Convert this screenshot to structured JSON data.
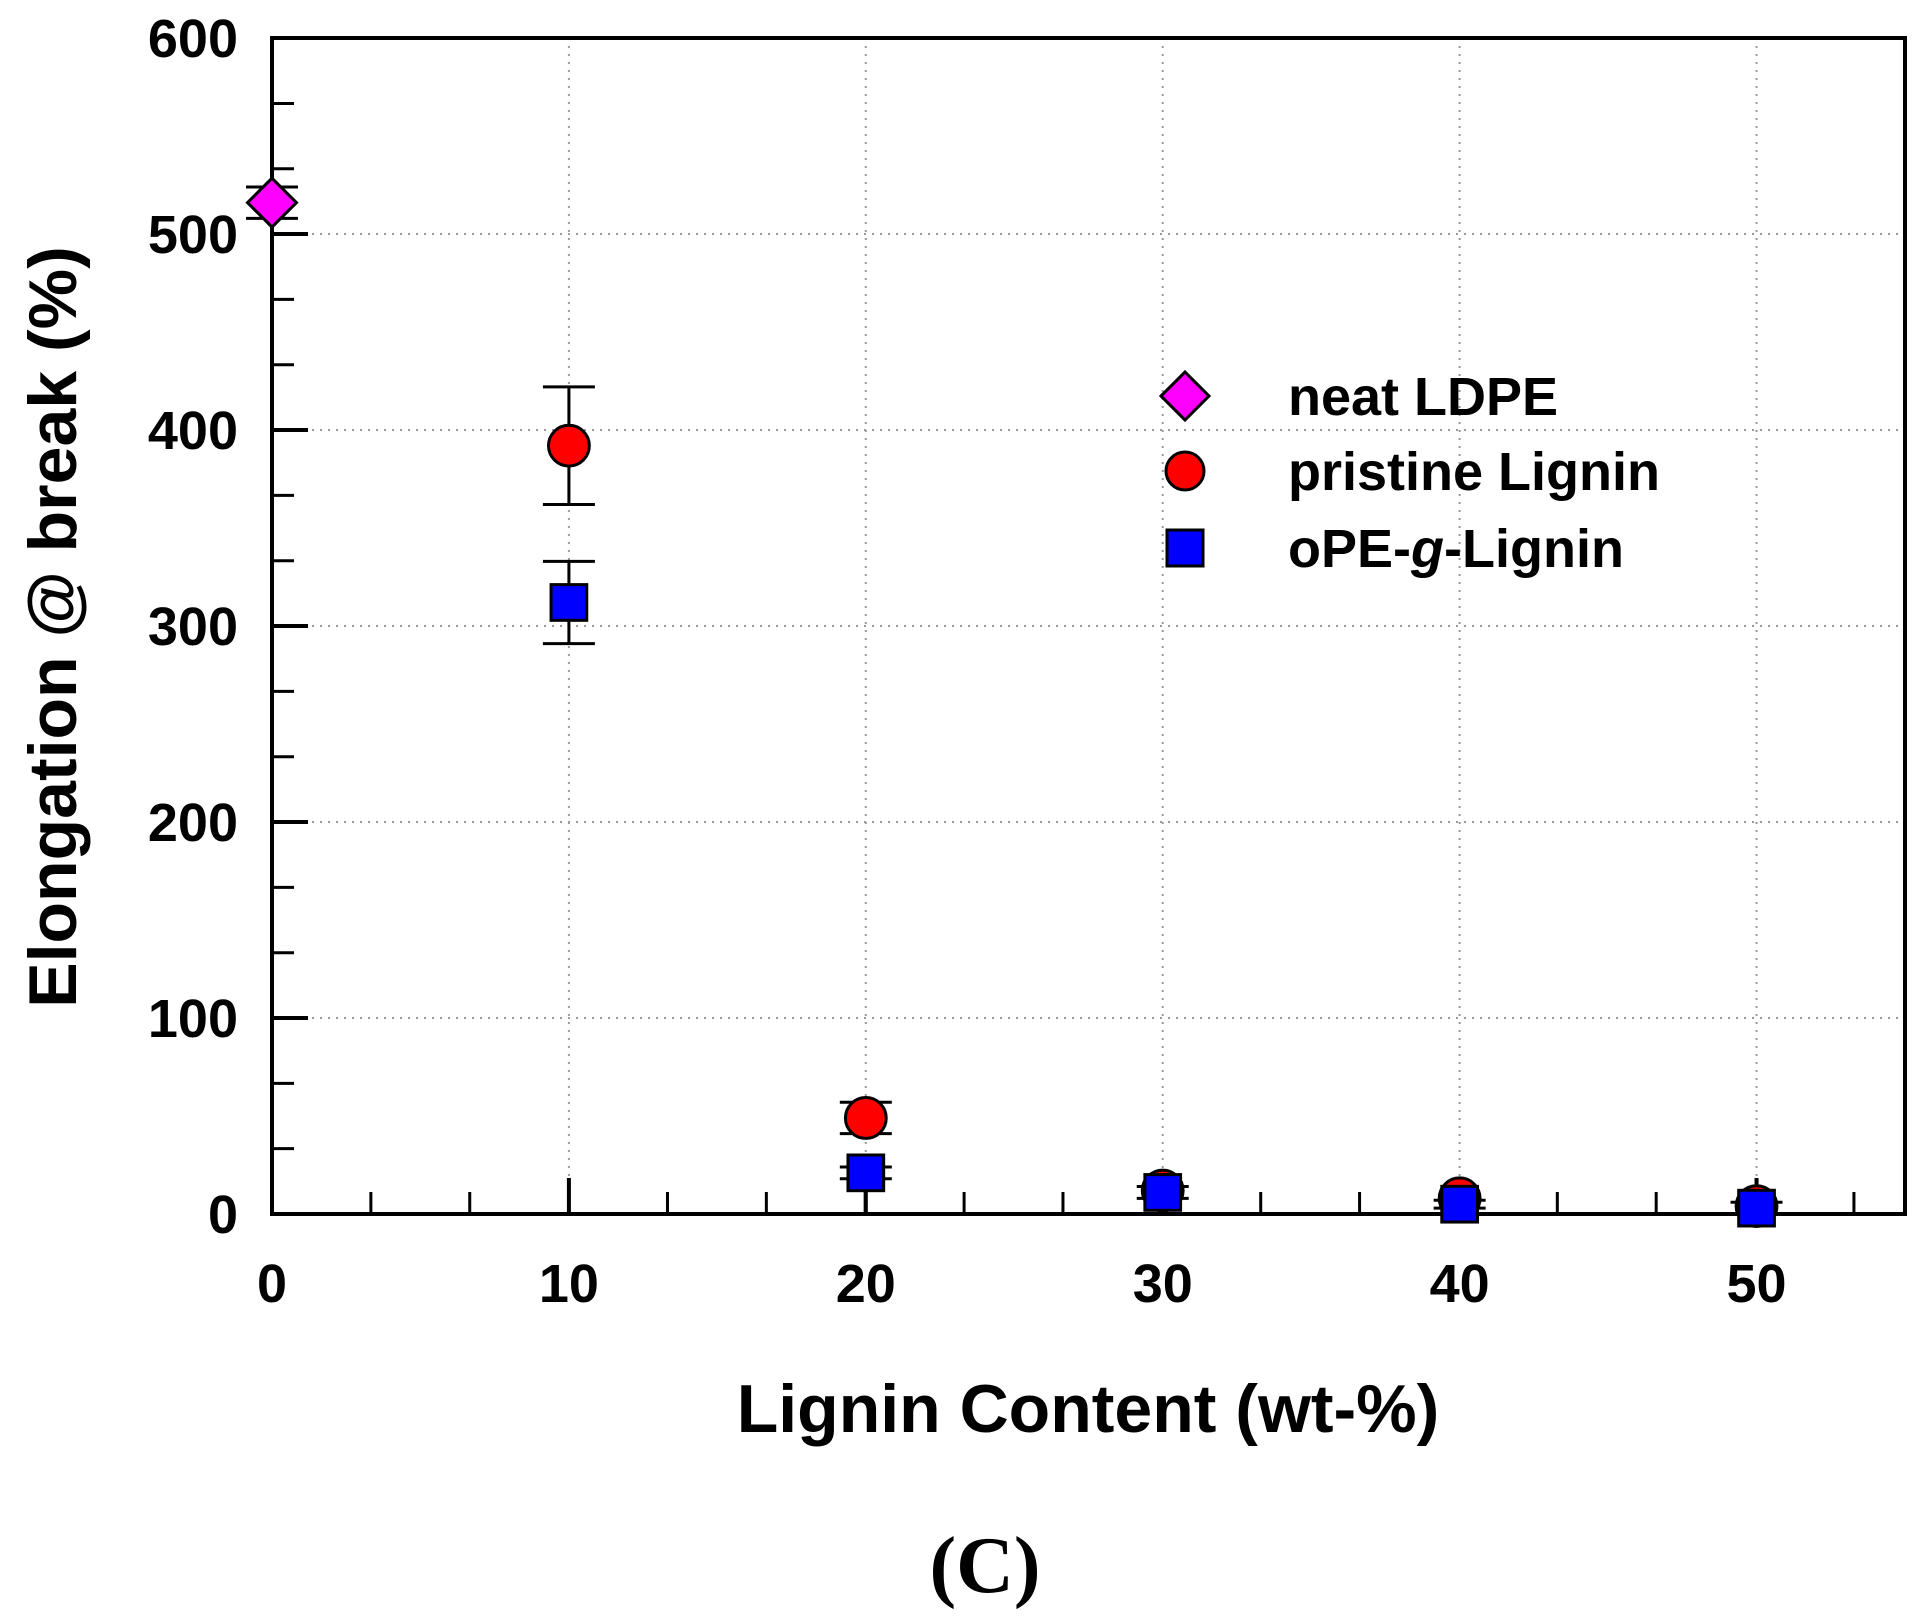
{
  "chart_data": {
    "type": "scatter",
    "xlabel": "Lignin Content (wt-%)",
    "ylabel": "Elongation @ break (%)",
    "xlim": [
      0,
      55
    ],
    "ylim": [
      0,
      600
    ],
    "xticks": [
      0,
      10,
      20,
      30,
      40,
      50
    ],
    "yticks": [
      0,
      100,
      200,
      300,
      400,
      500,
      600
    ],
    "x_minor_step": 3.33,
    "y_minor_step": 33.33,
    "grid": "dotted",
    "legend_position": "upper-right",
    "panel_label": "(C)",
    "series": [
      {
        "name": "neat LDPE",
        "marker": "diamond",
        "color": "#ff00ff",
        "points": [
          {
            "x": 0,
            "y": 516,
            "err": 8
          }
        ]
      },
      {
        "name": "pristine Lignin",
        "marker": "circle",
        "color": "#ff0000",
        "points": [
          {
            "x": 10,
            "y": 392,
            "err": 30
          },
          {
            "x": 20,
            "y": 49,
            "err": 8
          },
          {
            "x": 30,
            "y": 12,
            "err": 0
          },
          {
            "x": 40,
            "y": 8,
            "err": 0
          },
          {
            "x": 50,
            "y": 4,
            "err": 0
          }
        ]
      },
      {
        "name": "oPE-g-Lignin",
        "legend_parts": [
          "oPE-",
          "g",
          "-Lignin"
        ],
        "marker": "square",
        "color": "#0000ff",
        "points": [
          {
            "x": 10,
            "y": 312,
            "err": 21
          },
          {
            "x": 20,
            "y": 21,
            "err": 3
          },
          {
            "x": 30,
            "y": 11,
            "err": 3
          },
          {
            "x": 40,
            "y": 5,
            "err": 2
          },
          {
            "x": 50,
            "y": 3,
            "err": 3
          }
        ]
      }
    ]
  }
}
